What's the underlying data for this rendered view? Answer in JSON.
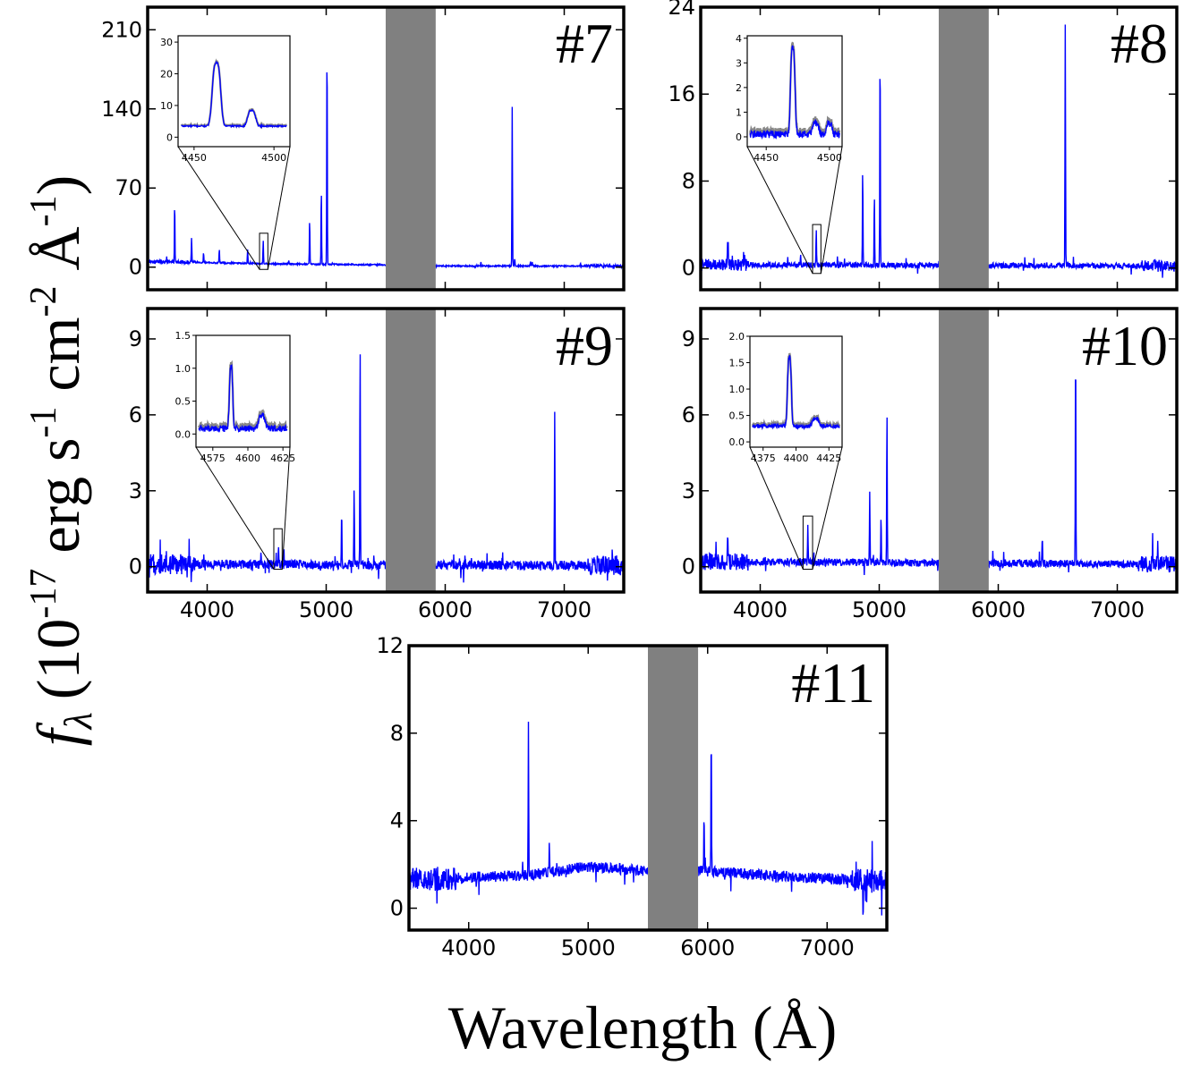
{
  "figure": {
    "ylabel": "(10-17 erg s-1 cm-2 Å-1)",
    "ylabel_parts": {
      "symbol": "f",
      "subscript": "λ",
      "open": "(10",
      "exp1": "-17",
      "erg": " erg s",
      "exp2": "-1",
      "cm": " cm",
      "exp3": "-2",
      "ang": " Å",
      "exp4": "-1",
      "close": ")"
    },
    "xlabel": "Wavelength (Å)",
    "colors": {
      "spectrum": "#0000ff",
      "mask": "#808080",
      "frame": "#000000"
    }
  },
  "chart_data": [
    {
      "type": "line",
      "label": "#7",
      "xlim": [
        3500,
        7500
      ],
      "ylim": [
        -20,
        230
      ],
      "yticks": [
        0,
        70,
        140,
        210
      ],
      "xticks": [
        4000,
        5000,
        6000,
        7000
      ],
      "show_xticklabels": false,
      "masked_region": [
        5500,
        5920
      ],
      "continuum": [
        [
          3500,
          5
        ],
        [
          4500,
          3
        ],
        [
          5500,
          2
        ],
        [
          6000,
          1
        ],
        [
          7500,
          1
        ]
      ],
      "noise": 0.6,
      "lines": [
        {
          "x": 3727,
          "y": 55
        },
        {
          "x": 3869,
          "y": 25
        },
        {
          "x": 3970,
          "y": 12
        },
        {
          "x": 4102,
          "y": 16
        },
        {
          "x": 4340,
          "y": 16
        },
        {
          "x": 4363,
          "y": 4
        },
        {
          "x": 4471,
          "y": 24
        },
        {
          "x": 4686,
          "y": 6
        },
        {
          "x": 4861,
          "y": 43
        },
        {
          "x": 4959,
          "y": 70
        },
        {
          "x": 5007,
          "y": 202
        },
        {
          "x": 6300,
          "y": 5
        },
        {
          "x": 6563,
          "y": 142
        },
        {
          "x": 6584,
          "y": 8
        },
        {
          "x": 6717,
          "y": 5
        },
        {
          "x": 6731,
          "y": 4
        },
        {
          "x": 7136,
          "y": 3
        }
      ],
      "zoom_box": {
        "x": [
          4440,
          4510
        ],
        "y": [
          -2,
          30
        ]
      },
      "inset": {
        "xlim": [
          4440,
          4510
        ],
        "ylim": [
          -3,
          32
        ],
        "xticks": [
          4450,
          4500
        ],
        "yticks": [
          0,
          10,
          20,
          30
        ],
        "continuum": 3.5,
        "noise": 0.25,
        "peaks": [
          {
            "x": 4464,
            "y": 20,
            "w": 3.2
          },
          {
            "x": 4486,
            "y": 5,
            "w": 3
          }
        ]
      }
    },
    {
      "type": "line",
      "label": "#8",
      "xlim": [
        3500,
        7500
      ],
      "ylim": [
        -2,
        24
      ],
      "yticks": [
        0,
        8,
        16,
        24
      ],
      "xticks": [
        4000,
        5000,
        6000,
        7000
      ],
      "show_xticklabels": false,
      "masked_region": [
        5500,
        5920
      ],
      "continuum": [
        [
          3500,
          0.3
        ],
        [
          7500,
          0.2
        ]
      ],
      "noise": 0.25,
      "lines": [
        {
          "x": 3727,
          "y": 2.2
        },
        {
          "x": 3869,
          "y": 1.2
        },
        {
          "x": 4340,
          "y": 1.4
        },
        {
          "x": 4471,
          "y": 3.6
        },
        {
          "x": 4861,
          "y": 9.2
        },
        {
          "x": 4959,
          "y": 6.8
        },
        {
          "x": 5007,
          "y": 20.5
        },
        {
          "x": 6563,
          "y": 22.5
        },
        {
          "x": 6584,
          "y": 0.8
        }
      ],
      "zoom_box": {
        "x": [
          4440,
          4510
        ],
        "y": [
          -0.5,
          4
        ]
      },
      "inset": {
        "xlim": [
          4435,
          4510
        ],
        "ylim": [
          -0.4,
          4.1
        ],
        "xticks": [
          4450,
          4500
        ],
        "yticks": [
          0,
          1,
          2,
          3,
          4
        ],
        "continuum": 0.1,
        "noise": 0.15,
        "peaks": [
          {
            "x": 4471,
            "y": 3.5,
            "w": 2.2
          },
          {
            "x": 4489,
            "y": 0.5,
            "w": 3
          },
          {
            "x": 4500,
            "y": 0.45,
            "w": 2.5
          }
        ]
      }
    },
    {
      "type": "line",
      "label": "#9",
      "xlim": [
        3500,
        7500
      ],
      "ylim": [
        -1,
        10.2
      ],
      "yticks": [
        0,
        3,
        6,
        9
      ],
      "xticks": [
        4000,
        5000,
        6000,
        7000
      ],
      "show_xticklabels": true,
      "masked_region": [
        5500,
        5920
      ],
      "continuum": [
        [
          3500,
          0.1
        ],
        [
          7500,
          0.05
        ]
      ],
      "noise": 0.18,
      "lines": [
        {
          "x": 4600,
          "y": 0.9
        },
        {
          "x": 5130,
          "y": 2.4
        },
        {
          "x": 5235,
          "y": 3.1
        },
        {
          "x": 5285,
          "y": 8.8
        },
        {
          "x": 6920,
          "y": 6.1
        }
      ],
      "zoom_box": {
        "x": [
          4560,
          4630
        ],
        "y": [
          -0.1,
          1.5
        ]
      },
      "inset": {
        "xlim": [
          4563,
          4630
        ],
        "ylim": [
          -0.2,
          1.5
        ],
        "xticks": [
          4575,
          4600,
          4625
        ],
        "yticks": [
          0.0,
          0.5,
          1.0,
          1.5
        ],
        "continuum": 0.08,
        "noise": 0.05,
        "peaks": [
          {
            "x": 4588,
            "y": 0.95,
            "w": 1.5
          },
          {
            "x": 4610,
            "y": 0.2,
            "w": 3
          }
        ]
      }
    },
    {
      "type": "line",
      "label": "#10",
      "xlim": [
        3500,
        7500
      ],
      "ylim": [
        -1,
        10.2
      ],
      "yticks": [
        0,
        3,
        6,
        9
      ],
      "xticks": [
        4000,
        5000,
        6000,
        7000
      ],
      "show_xticklabels": true,
      "masked_region": [
        5500,
        5920
      ],
      "continuum": [
        [
          3500,
          0.2
        ],
        [
          7500,
          0.1
        ]
      ],
      "noise": 0.15,
      "lines": [
        {
          "x": 3727,
          "y": 1.5
        },
        {
          "x": 4400,
          "y": 1.8
        },
        {
          "x": 4920,
          "y": 2.9
        },
        {
          "x": 5015,
          "y": 2.0
        },
        {
          "x": 5065,
          "y": 6.1
        },
        {
          "x": 6370,
          "y": 1.2
        },
        {
          "x": 6650,
          "y": 9.1
        },
        {
          "x": 7340,
          "y": 1.3
        }
      ],
      "zoom_box": {
        "x": [
          4360,
          4440
        ],
        "y": [
          -0.1,
          2.0
        ]
      },
      "inset": {
        "xlim": [
          4365,
          4435
        ],
        "ylim": [
          -0.1,
          2.0
        ],
        "xticks": [
          4375,
          4400,
          4425
        ],
        "yticks": [
          0.0,
          0.5,
          1.0,
          1.5,
          2.0
        ],
        "continuum": 0.3,
        "noise": 0.04,
        "peaks": [
          {
            "x": 4395,
            "y": 1.3,
            "w": 1.8
          },
          {
            "x": 4415,
            "y": 0.15,
            "w": 3
          }
        ]
      }
    },
    {
      "type": "line",
      "label": "#11",
      "xlim": [
        3500,
        7500
      ],
      "ylim": [
        -1,
        12
      ],
      "yticks": [
        0,
        4,
        8,
        12
      ],
      "xticks": [
        4000,
        5000,
        6000,
        7000
      ],
      "show_xticklabels": true,
      "masked_region": [
        5500,
        5920
      ],
      "continuum": [
        [
          3500,
          1.3
        ],
        [
          4000,
          1.4
        ],
        [
          4500,
          1.5
        ],
        [
          5000,
          1.9
        ],
        [
          5500,
          1.7
        ],
        [
          6000,
          1.7
        ],
        [
          6500,
          1.5
        ],
        [
          7500,
          1.2
        ]
      ],
      "noise": 0.25,
      "lines": [
        {
          "x": 4500,
          "y": 8.3
        },
        {
          "x": 4675,
          "y": 2.8
        },
        {
          "x": 5970,
          "y": 4.2
        },
        {
          "x": 6030,
          "y": 8.4
        }
      ],
      "zoom_box": null,
      "inset": null
    }
  ]
}
